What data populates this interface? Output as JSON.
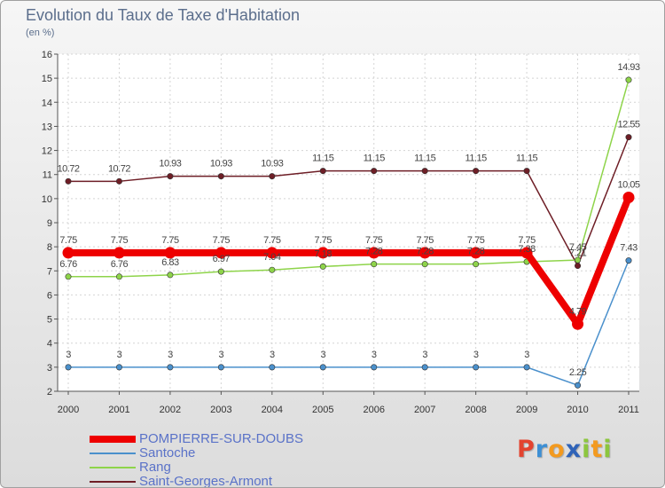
{
  "header": {
    "title": "Evolution du Taux de Taxe d'Habitation",
    "subtitle": "(en %)"
  },
  "logo": {
    "letters": [
      "P",
      "r",
      "o",
      "x",
      "i",
      "t",
      "i"
    ],
    "colors": [
      "#e3432f",
      "#3d8fd4",
      "#f39a1f",
      "#2f63b8",
      "#8cc63e",
      "#f39a1f",
      "#8cc63e"
    ]
  },
  "chart_data": {
    "type": "line",
    "title": "Evolution du Taux de Taxe d'Habitation",
    "ylabel": "(en %)",
    "xlabel": "",
    "ylim": [
      2,
      16
    ],
    "yticks": [
      "2",
      "3",
      "4",
      "5",
      "6",
      "7",
      "8",
      "9",
      "10",
      "11",
      "12",
      "13",
      "14",
      "15",
      "16"
    ],
    "categories": [
      "2000",
      "2001",
      "2002",
      "2003",
      "2004",
      "2005",
      "2006",
      "2007",
      "2008",
      "2009",
      "2010",
      "2011"
    ],
    "series": [
      {
        "name": "Saint-Georges-Armont",
        "color": "#6e1e26",
        "values": [
          10.72,
          10.72,
          10.93,
          10.93,
          10.93,
          11.15,
          11.15,
          11.15,
          11.15,
          11.15,
          7.21,
          12.55
        ],
        "labels": [
          "10.72",
          "10.72",
          "10.93",
          "10.93",
          "10.93",
          "11.15",
          "11.15",
          "11.15",
          "11.15",
          "11.15",
          "7.21",
          "12.55"
        ]
      },
      {
        "name": "Rang",
        "color": "#8ed44a",
        "values": [
          6.76,
          6.76,
          6.83,
          6.97,
          7.04,
          7.18,
          7.28,
          7.28,
          7.28,
          7.38,
          7.45,
          14.93
        ],
        "labels": [
          "6.76",
          "6.76",
          "6.83",
          "6.97",
          "7.04",
          "7.18",
          "7.28",
          "7.28",
          "7.28",
          "7.38",
          "7.45",
          "14.93"
        ]
      },
      {
        "name": "Santoche",
        "color": "#4a90cc",
        "values": [
          3,
          3,
          3,
          3,
          3,
          3,
          3,
          3,
          3,
          3,
          2.25,
          7.43
        ],
        "labels": [
          "3",
          "3",
          "3",
          "3",
          "3",
          "3",
          "3",
          "3",
          "3",
          "3",
          "2.25",
          "7.43"
        ]
      },
      {
        "name": "POMPIERRE-SUR-DOUBS",
        "color": "#ee0000",
        "values": [
          7.75,
          7.75,
          7.75,
          7.75,
          7.75,
          7.75,
          7.75,
          7.75,
          7.75,
          7.75,
          4.79,
          10.05
        ],
        "labels": [
          "7.75",
          "7.75",
          "7.75",
          "7.75",
          "7.75",
          "7.75",
          "7.75",
          "7.75",
          "7.75",
          "7.75",
          "4.79",
          "10.05"
        ]
      }
    ],
    "legend": [
      "POMPIERRE-SUR-DOUBS",
      "Santoche",
      "Rang",
      "Saint-Georges-Armont"
    ],
    "legend_position": "bottom-left"
  }
}
